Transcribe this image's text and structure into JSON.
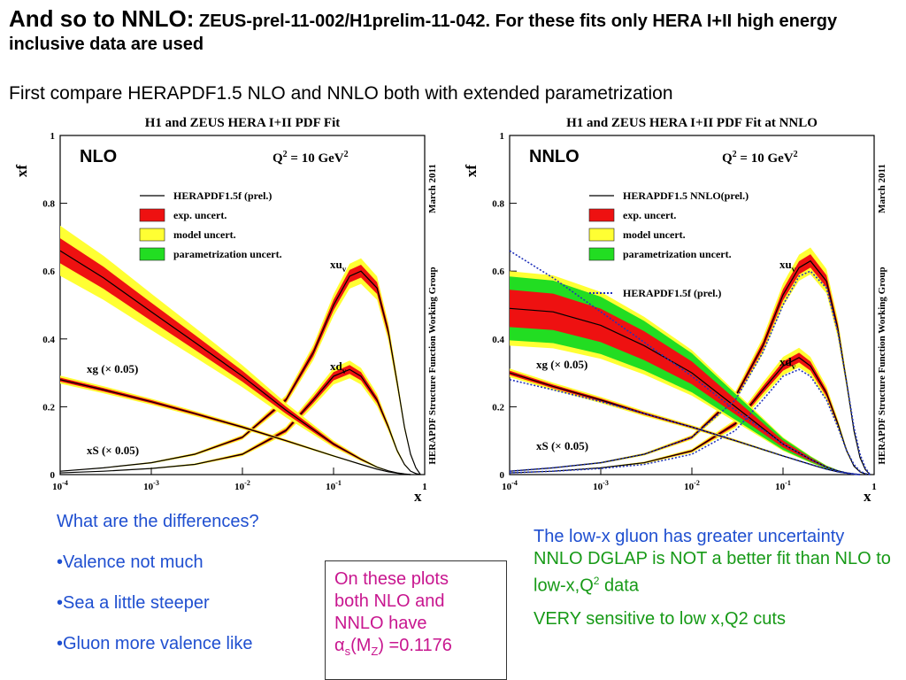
{
  "slide": {
    "title_main": "And so to NNLO:",
    "title_rest": " ZEUS-prel-11-002/H1prelim-11-042. For these fits only HERA I+II high energy inclusive data are used",
    "subtitle": "First compare HERAPDF1.5 NLO and NNLO  both with extended parametrization",
    "questions": [
      "What are the differences?",
      "•Valence not much",
      "•Sea a little steeper",
      "•Gluon more valence like"
    ],
    "box_lines": [
      "On these plots",
      "both NLO and",
      "NNLO have"
    ],
    "box_alpha": "α",
    "box_alpha_sub": "s",
    "box_mz_open": "(M",
    "box_mz_sub": "Z",
    "box_value": ") =0.1176",
    "right_blue_1": "The low-x gluon has greater uncertainty ",
    "right_green_1": "NNLO DGLAP is NOT a better fit than NLO to low-x,Q",
    "right_sup": "2",
    "right_green_2": " data",
    "right_last": "VERY sensitive to low x,Q2 cuts"
  },
  "colors": {
    "central": "#000000",
    "exp": "#ee1111",
    "model": "#ffff33",
    "param": "#22dd22",
    "compare": "#2233bb",
    "question_text": "#1f4fd0",
    "box_text": "#c8168f",
    "green_text": "#179a17"
  },
  "chart_data": [
    {
      "type": "line",
      "title": "H1 and ZEUS HERA I+II PDF Fit",
      "panel_label": "NLO",
      "scale_label": "Q",
      "scale_sup": "2",
      "scale_value": " = 10 GeV",
      "scale_unit_sup": "2",
      "side_note": "March 2011",
      "side_group": "HERAPDF Structure Function Working Group",
      "xlabel": "x",
      "ylabel": "xf",
      "xscale": "log",
      "xlim": [
        0.0001,
        1
      ],
      "ylim": [
        0,
        1
      ],
      "xtick_base": "10",
      "xticks": [
        {
          "base": "10",
          "exp": "-4"
        },
        {
          "base": "10",
          "exp": "-3"
        },
        {
          "base": "10",
          "exp": "-2"
        },
        {
          "base": "10",
          "exp": "-1"
        },
        {
          "base": "1",
          "exp": ""
        }
      ],
      "yticks": [
        "0",
        "0.2",
        "0.4",
        "0.6",
        "0.8",
        "1"
      ],
      "legend": [
        {
          "label": "HERAPDF1.5f (prel.)",
          "style": "line"
        },
        {
          "label": "exp. uncert.",
          "style": "exp"
        },
        {
          "label": "model uncert.",
          "style": "model"
        },
        {
          "label": "parametrization uncert.",
          "style": "param"
        }
      ],
      "curve_labels": [
        {
          "text": "xu",
          "sub": "v"
        },
        {
          "text": "xd",
          "sub": "v"
        },
        {
          "text": "xg (× 0.05)",
          "sub": ""
        },
        {
          "text": "xS (× 0.05)",
          "sub": ""
        }
      ],
      "series": [
        {
          "name": "xu_v",
          "x": [
            0.0001,
            0.0003,
            0.001,
            0.003,
            0.01,
            0.03,
            0.06,
            0.1,
            0.15,
            0.2,
            0.3,
            0.4,
            0.5,
            0.6,
            0.7,
            0.8,
            0.9
          ],
          "y": [
            0.01,
            0.02,
            0.035,
            0.06,
            0.11,
            0.22,
            0.36,
            0.5,
            0.585,
            0.6,
            0.55,
            0.42,
            0.27,
            0.14,
            0.06,
            0.02,
            0.0
          ]
        },
        {
          "name": "xd_v",
          "x": [
            0.0001,
            0.0003,
            0.001,
            0.003,
            0.01,
            0.03,
            0.06,
            0.1,
            0.15,
            0.2,
            0.3,
            0.4,
            0.5,
            0.6,
            0.7,
            0.8,
            0.9
          ],
          "y": [
            0.005,
            0.01,
            0.018,
            0.03,
            0.06,
            0.13,
            0.22,
            0.29,
            0.31,
            0.29,
            0.22,
            0.14,
            0.07,
            0.03,
            0.01,
            0.003,
            0.0
          ]
        },
        {
          "name": "xg (× 0.05)",
          "x": [
            0.0001,
            0.0003,
            0.001,
            0.003,
            0.01,
            0.03,
            0.1,
            0.2,
            0.3,
            0.4,
            0.5,
            0.6,
            0.7
          ],
          "y": [
            0.66,
            0.58,
            0.48,
            0.39,
            0.29,
            0.19,
            0.09,
            0.045,
            0.022,
            0.011,
            0.005,
            0.002,
            0.0
          ]
        },
        {
          "name": "xS (× 0.05)",
          "x": [
            0.0001,
            0.0003,
            0.001,
            0.003,
            0.01,
            0.03,
            0.1,
            0.2,
            0.3,
            0.4,
            0.5,
            0.6,
            0.7
          ],
          "y": [
            0.28,
            0.25,
            0.215,
            0.18,
            0.14,
            0.1,
            0.055,
            0.03,
            0.016,
            0.008,
            0.004,
            0.001,
            0.0
          ]
        }
      ]
    },
    {
      "type": "line",
      "title": "H1 and ZEUS HERA I+II PDF Fit at NNLO",
      "panel_label": "NNLO",
      "scale_label": "Q",
      "scale_sup": "2",
      "scale_value": " = 10 GeV",
      "scale_unit_sup": "2",
      "side_note": "March 2011",
      "side_group": "HERAPDF Structure Function Working Group",
      "xlabel": "x",
      "ylabel": "xf",
      "xscale": "log",
      "xlim": [
        0.0001,
        1
      ],
      "ylim": [
        0,
        1
      ],
      "xtick_base": "10",
      "xticks": [
        {
          "base": "10",
          "exp": "-4"
        },
        {
          "base": "10",
          "exp": "-3"
        },
        {
          "base": "10",
          "exp": "-2"
        },
        {
          "base": "10",
          "exp": "-1"
        },
        {
          "base": "1",
          "exp": ""
        }
      ],
      "yticks": [
        "0",
        "0.2",
        "0.4",
        "0.6",
        "0.8",
        "1"
      ],
      "legend": [
        {
          "label": "HERAPDF1.5 NNLO(prel.)",
          "style": "line"
        },
        {
          "label": "exp. uncert.",
          "style": "exp"
        },
        {
          "label": "model uncert.",
          "style": "model"
        },
        {
          "label": "parametrization uncert.",
          "style": "param"
        },
        {
          "label": "HERAPDF1.5f (prel.)",
          "style": "dotted"
        }
      ],
      "curve_labels": [
        {
          "text": "xu",
          "sub": "v"
        },
        {
          "text": "xd",
          "sub": "v"
        },
        {
          "text": "xg (× 0.05)",
          "sub": ""
        },
        {
          "text": "xS (× 0.05)",
          "sub": ""
        }
      ],
      "series": [
        {
          "name": "xu_v",
          "x": [
            0.0001,
            0.0003,
            0.001,
            0.003,
            0.01,
            0.03,
            0.06,
            0.1,
            0.15,
            0.2,
            0.3,
            0.4,
            0.5,
            0.6,
            0.7,
            0.8,
            0.9
          ],
          "y": [
            0.01,
            0.02,
            0.035,
            0.06,
            0.11,
            0.23,
            0.38,
            0.53,
            0.61,
            0.63,
            0.57,
            0.43,
            0.27,
            0.13,
            0.05,
            0.015,
            0.0
          ]
        },
        {
          "name": "xd_v",
          "x": [
            0.0001,
            0.0003,
            0.001,
            0.003,
            0.01,
            0.03,
            0.06,
            0.1,
            0.15,
            0.2,
            0.3,
            0.4,
            0.5,
            0.6,
            0.7,
            0.8,
            0.9
          ],
          "y": [
            0.005,
            0.01,
            0.02,
            0.035,
            0.07,
            0.15,
            0.25,
            0.32,
            0.345,
            0.32,
            0.24,
            0.15,
            0.07,
            0.025,
            0.008,
            0.002,
            0.0
          ]
        },
        {
          "name": "xg (× 0.05)",
          "x": [
            0.0001,
            0.0003,
            0.001,
            0.003,
            0.01,
            0.03,
            0.1,
            0.2,
            0.3,
            0.4,
            0.5,
            0.6,
            0.7
          ],
          "y": [
            0.49,
            0.48,
            0.44,
            0.38,
            0.3,
            0.2,
            0.09,
            0.045,
            0.022,
            0.011,
            0.005,
            0.002,
            0.0
          ]
        },
        {
          "name": "xS (× 0.05)",
          "x": [
            0.0001,
            0.0003,
            0.001,
            0.003,
            0.01,
            0.03,
            0.1,
            0.2,
            0.3,
            0.4,
            0.5,
            0.6,
            0.7
          ],
          "y": [
            0.3,
            0.26,
            0.22,
            0.18,
            0.14,
            0.1,
            0.055,
            0.03,
            0.016,
            0.008,
            0.004,
            0.001,
            0.0
          ]
        },
        {
          "name": "HERAPDF1.5f (prel.)",
          "x": [
            0.0001,
            0.0003,
            0.001,
            0.003,
            0.01,
            0.03,
            0.06,
            0.1,
            0.15,
            0.2,
            0.3,
            0.4,
            0.5,
            0.6,
            0.7,
            0.8,
            0.9
          ],
          "y": [
            0.01,
            0.02,
            0.035,
            0.06,
            0.11,
            0.22,
            0.36,
            0.5,
            0.585,
            0.6,
            0.55,
            0.42,
            0.27,
            0.14,
            0.06,
            0.02,
            0.0
          ]
        },
        {
          "name": "HERAPDF1.5f (prel.)",
          "x": [
            0.0001,
            0.0003,
            0.001,
            0.003,
            0.01,
            0.03,
            0.06,
            0.1,
            0.15,
            0.2,
            0.3,
            0.4,
            0.5,
            0.6,
            0.7,
            0.8,
            0.9
          ],
          "y": [
            0.005,
            0.01,
            0.018,
            0.03,
            0.06,
            0.13,
            0.22,
            0.29,
            0.31,
            0.29,
            0.22,
            0.14,
            0.07,
            0.03,
            0.01,
            0.003,
            0.0
          ]
        },
        {
          "name": "HERAPDF1.5f (prel.)",
          "x": [
            0.0001,
            0.0003,
            0.001,
            0.003,
            0.01,
            0.03,
            0.1,
            0.2,
            0.3,
            0.4,
            0.5,
            0.6,
            0.7
          ],
          "y": [
            0.66,
            0.58,
            0.48,
            0.39,
            0.29,
            0.19,
            0.09,
            0.045,
            0.022,
            0.011,
            0.005,
            0.002,
            0.0
          ]
        },
        {
          "name": "HERAPDF1.5f (prel.)",
          "x": [
            0.0001,
            0.0003,
            0.001,
            0.003,
            0.01,
            0.03,
            0.1,
            0.2,
            0.3,
            0.4,
            0.5,
            0.6,
            0.7
          ],
          "y": [
            0.28,
            0.25,
            0.215,
            0.18,
            0.14,
            0.1,
            0.055,
            0.03,
            0.016,
            0.008,
            0.004,
            0.001,
            0.0
          ]
        }
      ]
    }
  ]
}
